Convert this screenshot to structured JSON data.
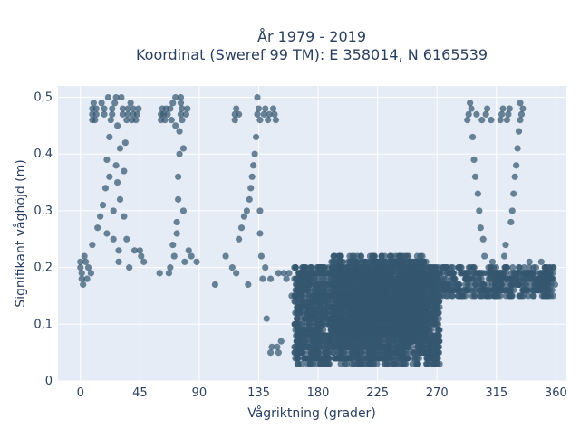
{
  "chart_data": {
    "type": "scatter",
    "title": [
      "År 1979 - 2019",
      "Koordinat (Sweref 99 TM): E 358014, N 6165539"
    ],
    "xlabel": "Vågriktning (grader)",
    "ylabel": "Signifikant våghöjd (m)",
    "xlim": [
      -17,
      368
    ],
    "ylim": [
      0,
      0.52
    ],
    "xticks": [
      0,
      45,
      90,
      135,
      180,
      225,
      270,
      315,
      360
    ],
    "xtick_labels": [
      "0",
      "45",
      "90",
      "135",
      "180",
      "225",
      "270",
      "315",
      "360"
    ],
    "yticks": [
      0,
      0.1,
      0.2,
      0.3,
      0.4,
      0.5
    ],
    "ytick_labels": [
      "0",
      "0,1",
      "0,2",
      "0,3",
      "0,4",
      "0,5"
    ],
    "grid": true,
    "marker_color": "#34566f",
    "plot_background": "#e5ecf6",
    "points": [
      [
        0,
        0.21
      ],
      [
        0,
        0.2
      ],
      [
        1,
        0.19
      ],
      [
        1,
        0.18
      ],
      [
        2,
        0.17
      ],
      [
        3,
        0.22
      ],
      [
        4,
        0.21
      ],
      [
        5,
        0.18
      ],
      [
        6,
        0.2
      ],
      [
        8,
        0.19
      ],
      [
        9,
        0.24
      ],
      [
        9,
        0.46
      ],
      [
        9,
        0.47
      ],
      [
        9,
        0.48
      ],
      [
        10,
        0.49
      ],
      [
        11,
        0.46
      ],
      [
        12,
        0.47
      ],
      [
        12,
        0.48
      ],
      [
        13,
        0.27
      ],
      [
        15,
        0.29
      ],
      [
        16,
        0.49
      ],
      [
        17,
        0.31
      ],
      [
        18,
        0.47
      ],
      [
        18,
        0.48
      ],
      [
        19,
        0.34
      ],
      [
        20,
        0.39
      ],
      [
        20,
        0.26
      ],
      [
        21,
        0.5
      ],
      [
        22,
        0.36
      ],
      [
        22,
        0.43
      ],
      [
        23,
        0.46
      ],
      [
        24,
        0.47
      ],
      [
        24,
        0.48
      ],
      [
        25,
        0.3
      ],
      [
        25,
        0.25
      ],
      [
        26,
        0.49
      ],
      [
        27,
        0.38
      ],
      [
        27,
        0.5
      ],
      [
        28,
        0.35
      ],
      [
        28,
        0.45
      ],
      [
        29,
        0.23
      ],
      [
        29,
        0.21
      ],
      [
        30,
        0.32
      ],
      [
        30,
        0.41
      ],
      [
        31,
        0.5
      ],
      [
        32,
        0.47
      ],
      [
        32,
        0.48
      ],
      [
        33,
        0.29
      ],
      [
        33,
        0.37
      ],
      [
        34,
        0.42
      ],
      [
        35,
        0.25
      ],
      [
        35,
        0.46
      ],
      [
        36,
        0.47
      ],
      [
        36,
        0.48
      ],
      [
        37,
        0.2
      ],
      [
        38,
        0.49
      ],
      [
        39,
        0.46
      ],
      [
        40,
        0.47
      ],
      [
        40,
        0.48
      ],
      [
        41,
        0.23
      ],
      [
        42,
        0.46
      ],
      [
        43,
        0.47
      ],
      [
        44,
        0.48
      ],
      [
        45,
        0.23
      ],
      [
        46,
        0.22
      ],
      [
        48,
        0.21
      ],
      [
        60,
        0.19
      ],
      [
        61,
        0.46
      ],
      [
        61,
        0.47
      ],
      [
        62,
        0.48
      ],
      [
        63,
        0.47
      ],
      [
        64,
        0.46
      ],
      [
        65,
        0.48
      ],
      [
        66,
        0.47
      ],
      [
        67,
        0.19
      ],
      [
        68,
        0.48
      ],
      [
        68,
        0.2
      ],
      [
        69,
        0.46
      ],
      [
        70,
        0.49
      ],
      [
        70,
        0.24
      ],
      [
        71,
        0.22
      ],
      [
        72,
        0.5
      ],
      [
        72,
        0.45
      ],
      [
        73,
        0.26
      ],
      [
        73,
        0.28
      ],
      [
        74,
        0.32
      ],
      [
        74,
        0.36
      ],
      [
        75,
        0.4
      ],
      [
        75,
        0.44
      ],
      [
        76,
        0.5
      ],
      [
        76,
        0.49
      ],
      [
        76,
        0.47
      ],
      [
        77,
        0.46
      ],
      [
        77,
        0.48
      ],
      [
        78,
        0.41
      ],
      [
        78,
        0.3
      ],
      [
        79,
        0.21
      ],
      [
        80,
        0.47
      ],
      [
        81,
        0.48
      ],
      [
        82,
        0.23
      ],
      [
        84,
        0.22
      ],
      [
        88,
        0.21
      ],
      [
        102,
        0.17
      ],
      [
        110,
        0.22
      ],
      [
        115,
        0.2
      ],
      [
        117,
        0.46
      ],
      [
        117,
        0.47
      ],
      [
        118,
        0.48
      ],
      [
        118,
        0.19
      ],
      [
        120,
        0.47
      ],
      [
        120,
        0.25
      ],
      [
        122,
        0.27
      ],
      [
        124,
        0.29
      ],
      [
        126,
        0.3
      ],
      [
        127,
        0.17
      ],
      [
        128,
        0.32
      ],
      [
        129,
        0.34
      ],
      [
        130,
        0.36
      ],
      [
        131,
        0.38
      ],
      [
        132,
        0.4
      ],
      [
        133,
        0.43
      ],
      [
        134,
        0.5
      ],
      [
        134,
        0.47
      ],
      [
        135,
        0.48
      ],
      [
        136,
        0.46
      ],
      [
        136,
        0.3
      ],
      [
        136,
        0.26
      ],
      [
        137,
        0.22
      ],
      [
        138,
        0.18
      ],
      [
        139,
        0.47
      ],
      [
        140,
        0.48
      ],
      [
        140,
        0.2
      ],
      [
        141,
        0.11
      ],
      [
        142,
        0.46
      ],
      [
        143,
        0.47
      ],
      [
        144,
        0.18
      ],
      [
        144,
        0.05
      ],
      [
        145,
        0.06
      ],
      [
        146,
        0.48
      ],
      [
        147,
        0.47
      ],
      [
        148,
        0.46
      ],
      [
        149,
        0.06
      ],
      [
        150,
        0.05
      ],
      [
        150,
        0.19
      ],
      [
        152,
        0.07
      ],
      [
        154,
        0.19
      ],
      [
        156,
        0.18
      ],
      [
        158,
        0.19
      ],
      [
        160,
        0.15
      ],
      [
        162,
        0.2
      ],
      [
        164,
        0.13
      ],
      [
        166,
        0.19
      ],
      [
        168,
        0.2
      ],
      [
        170,
        0.19
      ],
      [
        172,
        0.19
      ],
      [
        174,
        0.2
      ],
      [
        176,
        0.19
      ],
      [
        178,
        0.19
      ],
      [
        180,
        0.19
      ],
      [
        182,
        0.2
      ],
      [
        184,
        0.19
      ],
      [
        186,
        0.19
      ],
      [
        293,
        0.46
      ],
      [
        294,
        0.47
      ],
      [
        295,
        0.49
      ],
      [
        296,
        0.48
      ],
      [
        297,
        0.43
      ],
      [
        298,
        0.39
      ],
      [
        299,
        0.36
      ],
      [
        300,
        0.47
      ],
      [
        301,
        0.33
      ],
      [
        302,
        0.3
      ],
      [
        303,
        0.27
      ],
      [
        304,
        0.46
      ],
      [
        305,
        0.25
      ],
      [
        306,
        0.22
      ],
      [
        307,
        0.47
      ],
      [
        308,
        0.48
      ],
      [
        309,
        0.2
      ],
      [
        310,
        0.18
      ],
      [
        311,
        0.46
      ],
      [
        312,
        0.21
      ],
      [
        313,
        0.19
      ],
      [
        314,
        0.16
      ],
      [
        315,
        0.17
      ],
      [
        316,
        0.18
      ],
      [
        317,
        0.19
      ],
      [
        318,
        0.46
      ],
      [
        319,
        0.47
      ],
      [
        320,
        0.48
      ],
      [
        321,
        0.22
      ],
      [
        322,
        0.24
      ],
      [
        323,
        0.46
      ],
      [
        324,
        0.47
      ],
      [
        325,
        0.48
      ],
      [
        326,
        0.28
      ],
      [
        327,
        0.3
      ],
      [
        328,
        0.33
      ],
      [
        329,
        0.36
      ],
      [
        330,
        0.38
      ],
      [
        331,
        0.41
      ],
      [
        332,
        0.44
      ],
      [
        333,
        0.46
      ],
      [
        333,
        0.49
      ],
      [
        334,
        0.47
      ],
      [
        335,
        0.48
      ],
      [
        336,
        0.2
      ],
      [
        337,
        0.18
      ],
      [
        338,
        0.16
      ],
      [
        339,
        0.19
      ],
      [
        340,
        0.21
      ],
      [
        341,
        0.17
      ],
      [
        342,
        0.18
      ],
      [
        343,
        0.16
      ],
      [
        344,
        0.19
      ],
      [
        345,
        0.2
      ],
      [
        346,
        0.17
      ],
      [
        347,
        0.18
      ],
      [
        348,
        0.19
      ],
      [
        349,
        0.21
      ],
      [
        350,
        0.18
      ],
      [
        351,
        0.17
      ],
      [
        352,
        0.2
      ],
      [
        353,
        0.19
      ],
      [
        354,
        0.18
      ],
      [
        355,
        0.2
      ],
      [
        356,
        0.19
      ],
      [
        357,
        0.18
      ],
      [
        358,
        0.2
      ]
    ],
    "dense_clusters": [
      {
        "x_range": [
          162,
          272
        ],
        "y_range": [
          0.03,
          0.2
        ],
        "count": 2400,
        "seed": 7
      },
      {
        "x_range": [
          190,
          262
        ],
        "y_range": [
          0.08,
          0.22
        ],
        "count": 1300,
        "seed": 13
      },
      {
        "x_range": [
          265,
          360
        ],
        "y_range": [
          0.15,
          0.2
        ],
        "count": 450,
        "seed": 29
      }
    ]
  }
}
